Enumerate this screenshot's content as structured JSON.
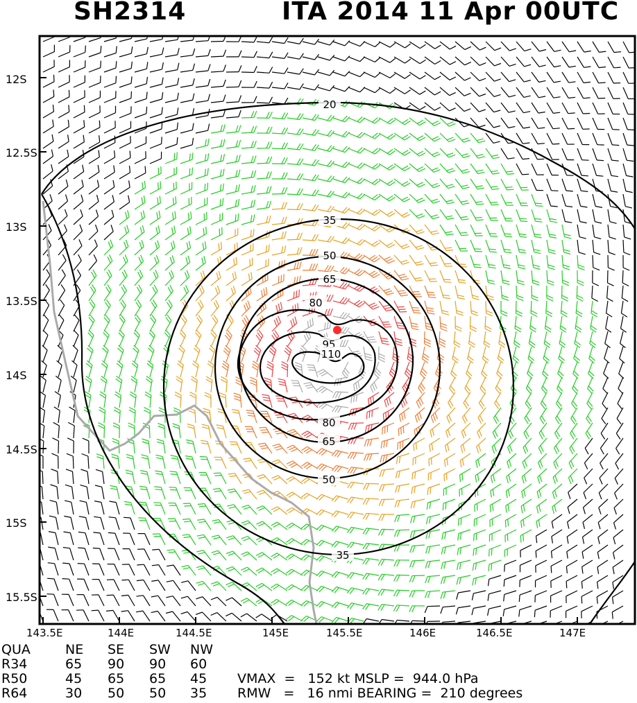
{
  "header": {
    "storm_id": "SH2314",
    "storm_info": "ITA 2014 11 Apr 00UTC"
  },
  "map": {
    "type": "wind-barb-analysis",
    "lat_labels": [
      "12S",
      "12.5S",
      "13S",
      "13.5S",
      "14S",
      "14.5S",
      "15S",
      "15.5S"
    ],
    "lon_labels": [
      "143.5E",
      "144E",
      "144.5E",
      "145E",
      "145.5E",
      "146E",
      "146.5E",
      "147E"
    ],
    "contour_labels": [
      "20",
      "35",
      "50",
      "65",
      "80",
      "95",
      "110",
      "80",
      "65",
      "50",
      "35"
    ],
    "wind_colors": {
      "below_20kt": "#000000",
      "20_to_35kt": "#22cc22",
      "35_to_50kt": "#e8a020",
      "50_to_65kt": "#ef7a30",
      "65_to_80kt": "#ee4040",
      "above_95kt": "#aaaaaa"
    },
    "storm_center_color": "#ff2a2a",
    "coastline_color": "#aaaaaa"
  },
  "radii_table": {
    "headers": [
      "QUA",
      "NE",
      "SE",
      "SW",
      "NW"
    ],
    "rows": [
      [
        "R34",
        "65",
        "90",
        "90",
        "60"
      ],
      [
        "R50",
        "45",
        "65",
        "65",
        "45"
      ],
      [
        "R64",
        "30",
        "50",
        "50",
        "35"
      ]
    ]
  },
  "stats": {
    "vmax_line": "VMAX  =   152 kt MSLP =  944.0 hPa",
    "rmw_line": "RMW   =   16 nmi BEARING =  210 degrees"
  }
}
